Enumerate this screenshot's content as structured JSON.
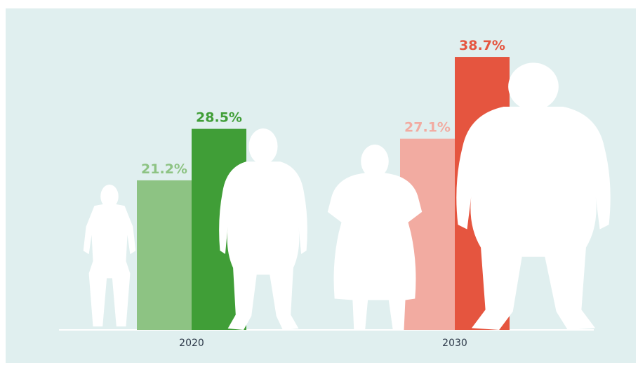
{
  "chart_data": {
    "type": "bar",
    "categories": [
      "2020",
      "2030"
    ],
    "series": [
      {
        "values": [
          21.2,
          27.1
        ],
        "value_labels": [
          "21.2%",
          "27.1%"
        ],
        "colors": [
          "#8dc383",
          "#f2aba1"
        ],
        "silhouette": "woman-silhouette"
      },
      {
        "values": [
          28.5,
          38.7
        ],
        "value_labels": [
          "28.5%",
          "38.7%"
        ],
        "colors": [
          "#409e37",
          "#e5553f"
        ],
        "silhouette": "man-silhouette"
      }
    ],
    "title": "",
    "xlabel": "",
    "ylabel": "",
    "ylim": [
      0,
      40
    ],
    "grid": false,
    "legend": "none",
    "background_color": "#e0efef",
    "silhouette_color": "#ffffff"
  }
}
